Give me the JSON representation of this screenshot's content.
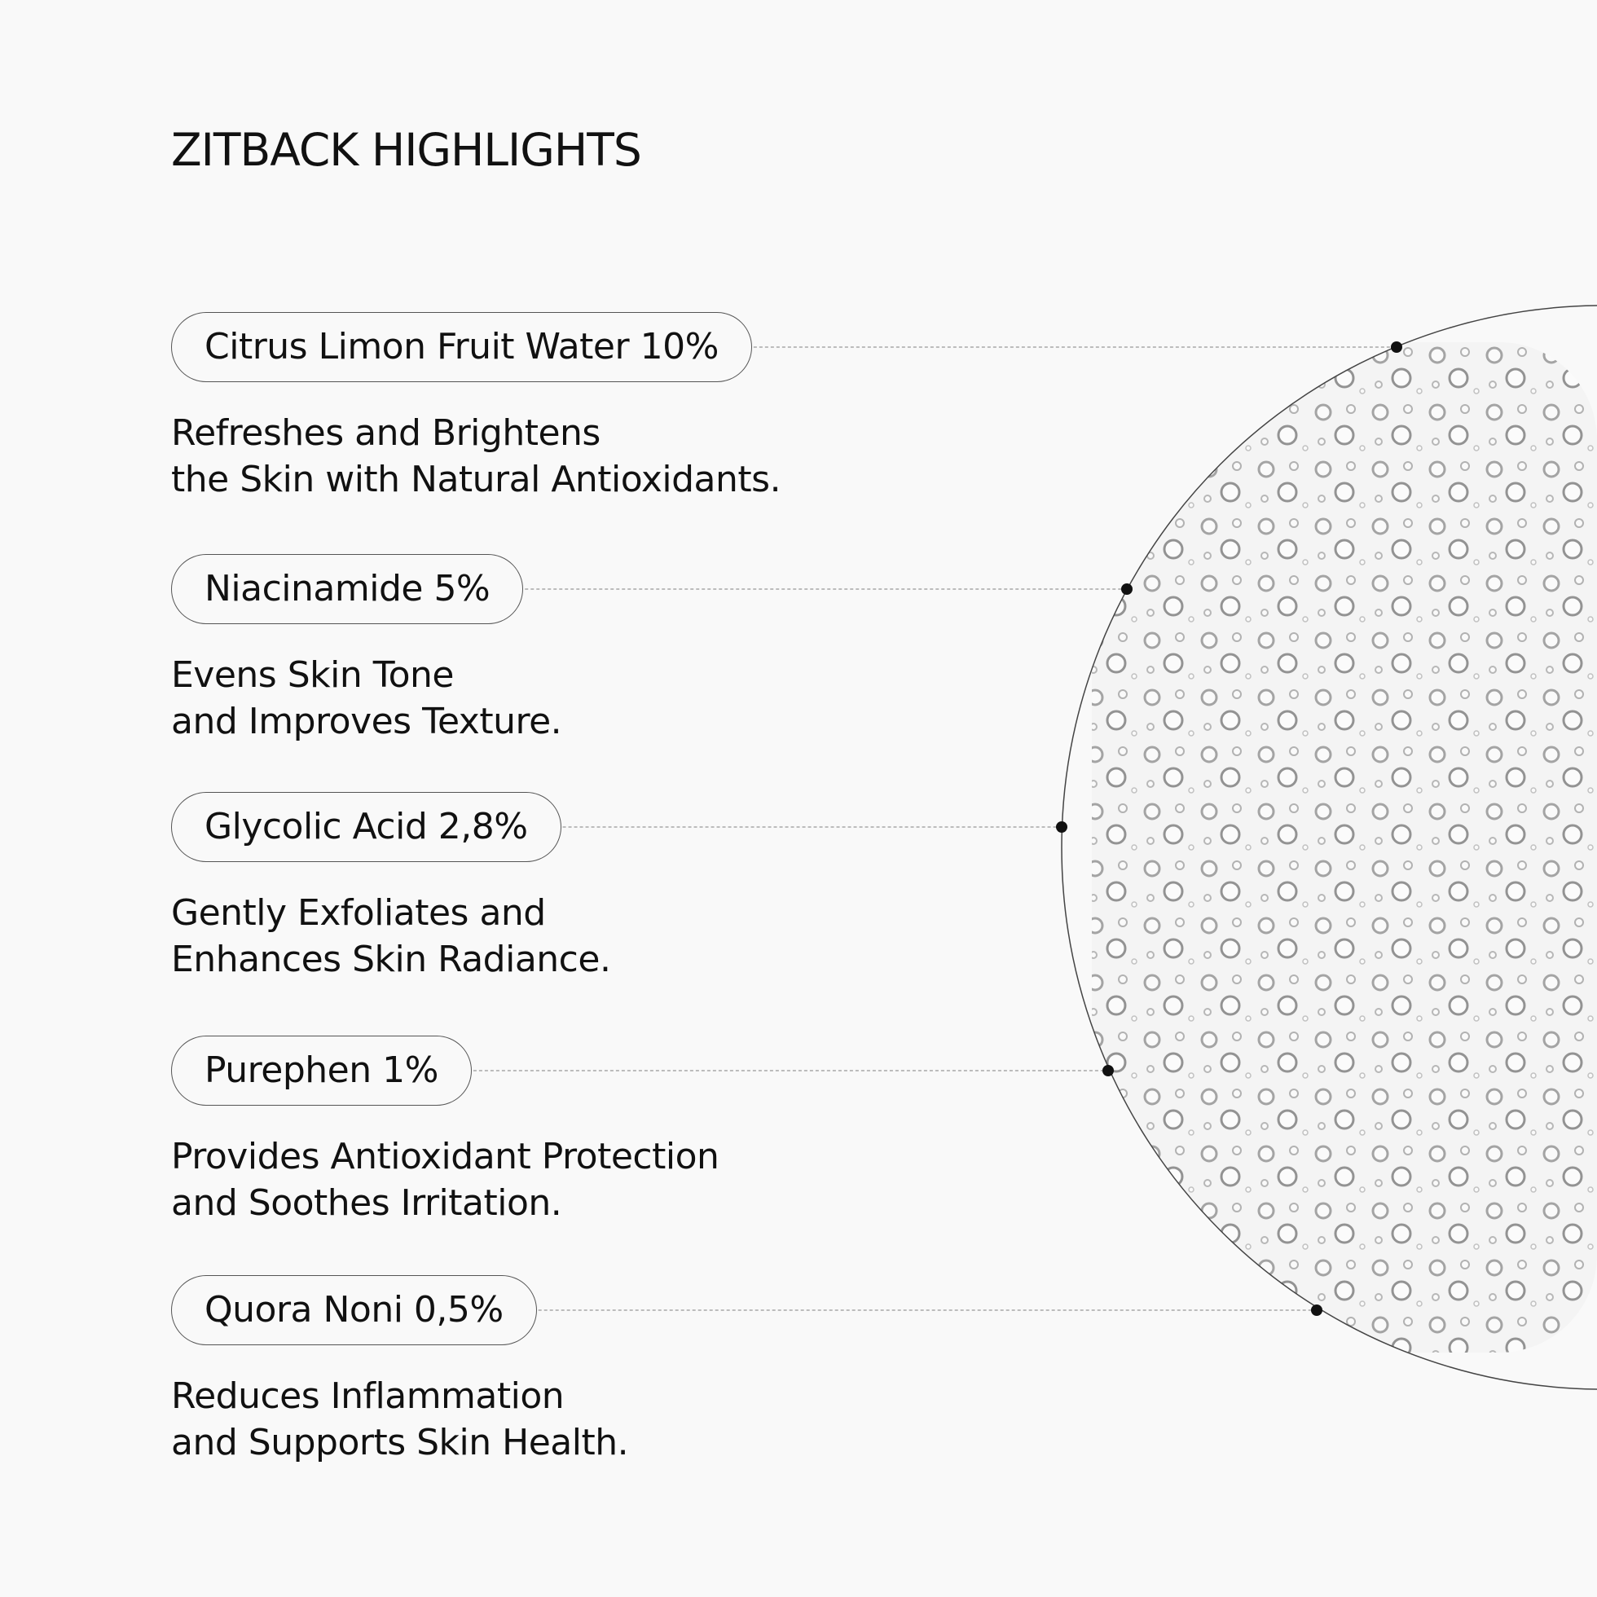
{
  "header": {
    "title": "ZITBACK HIGHLIGHTS"
  },
  "items": [
    {
      "label": "Citrus Limon Fruit Water 10%",
      "description": [
        "Refreshes and Brightens",
        "the Skin with Natural Antioxidants."
      ]
    },
    {
      "label": "Niacinamide 5%",
      "description": [
        "Evens Skin Tone",
        "and Improves Texture."
      ]
    },
    {
      "label": "Glycolic Acid 2,8%",
      "description": [
        "Gently Exfoliates and",
        "Enhances Skin Radiance."
      ]
    },
    {
      "label": "Purephen 1%",
      "description": [
        "Provides Antioxidant Protection",
        "and Soothes Irritation."
      ]
    },
    {
      "label": "Quora Noni 0,5%",
      "description": [
        "Reduces Inflammation",
        "and Supports Skin Health."
      ]
    }
  ]
}
